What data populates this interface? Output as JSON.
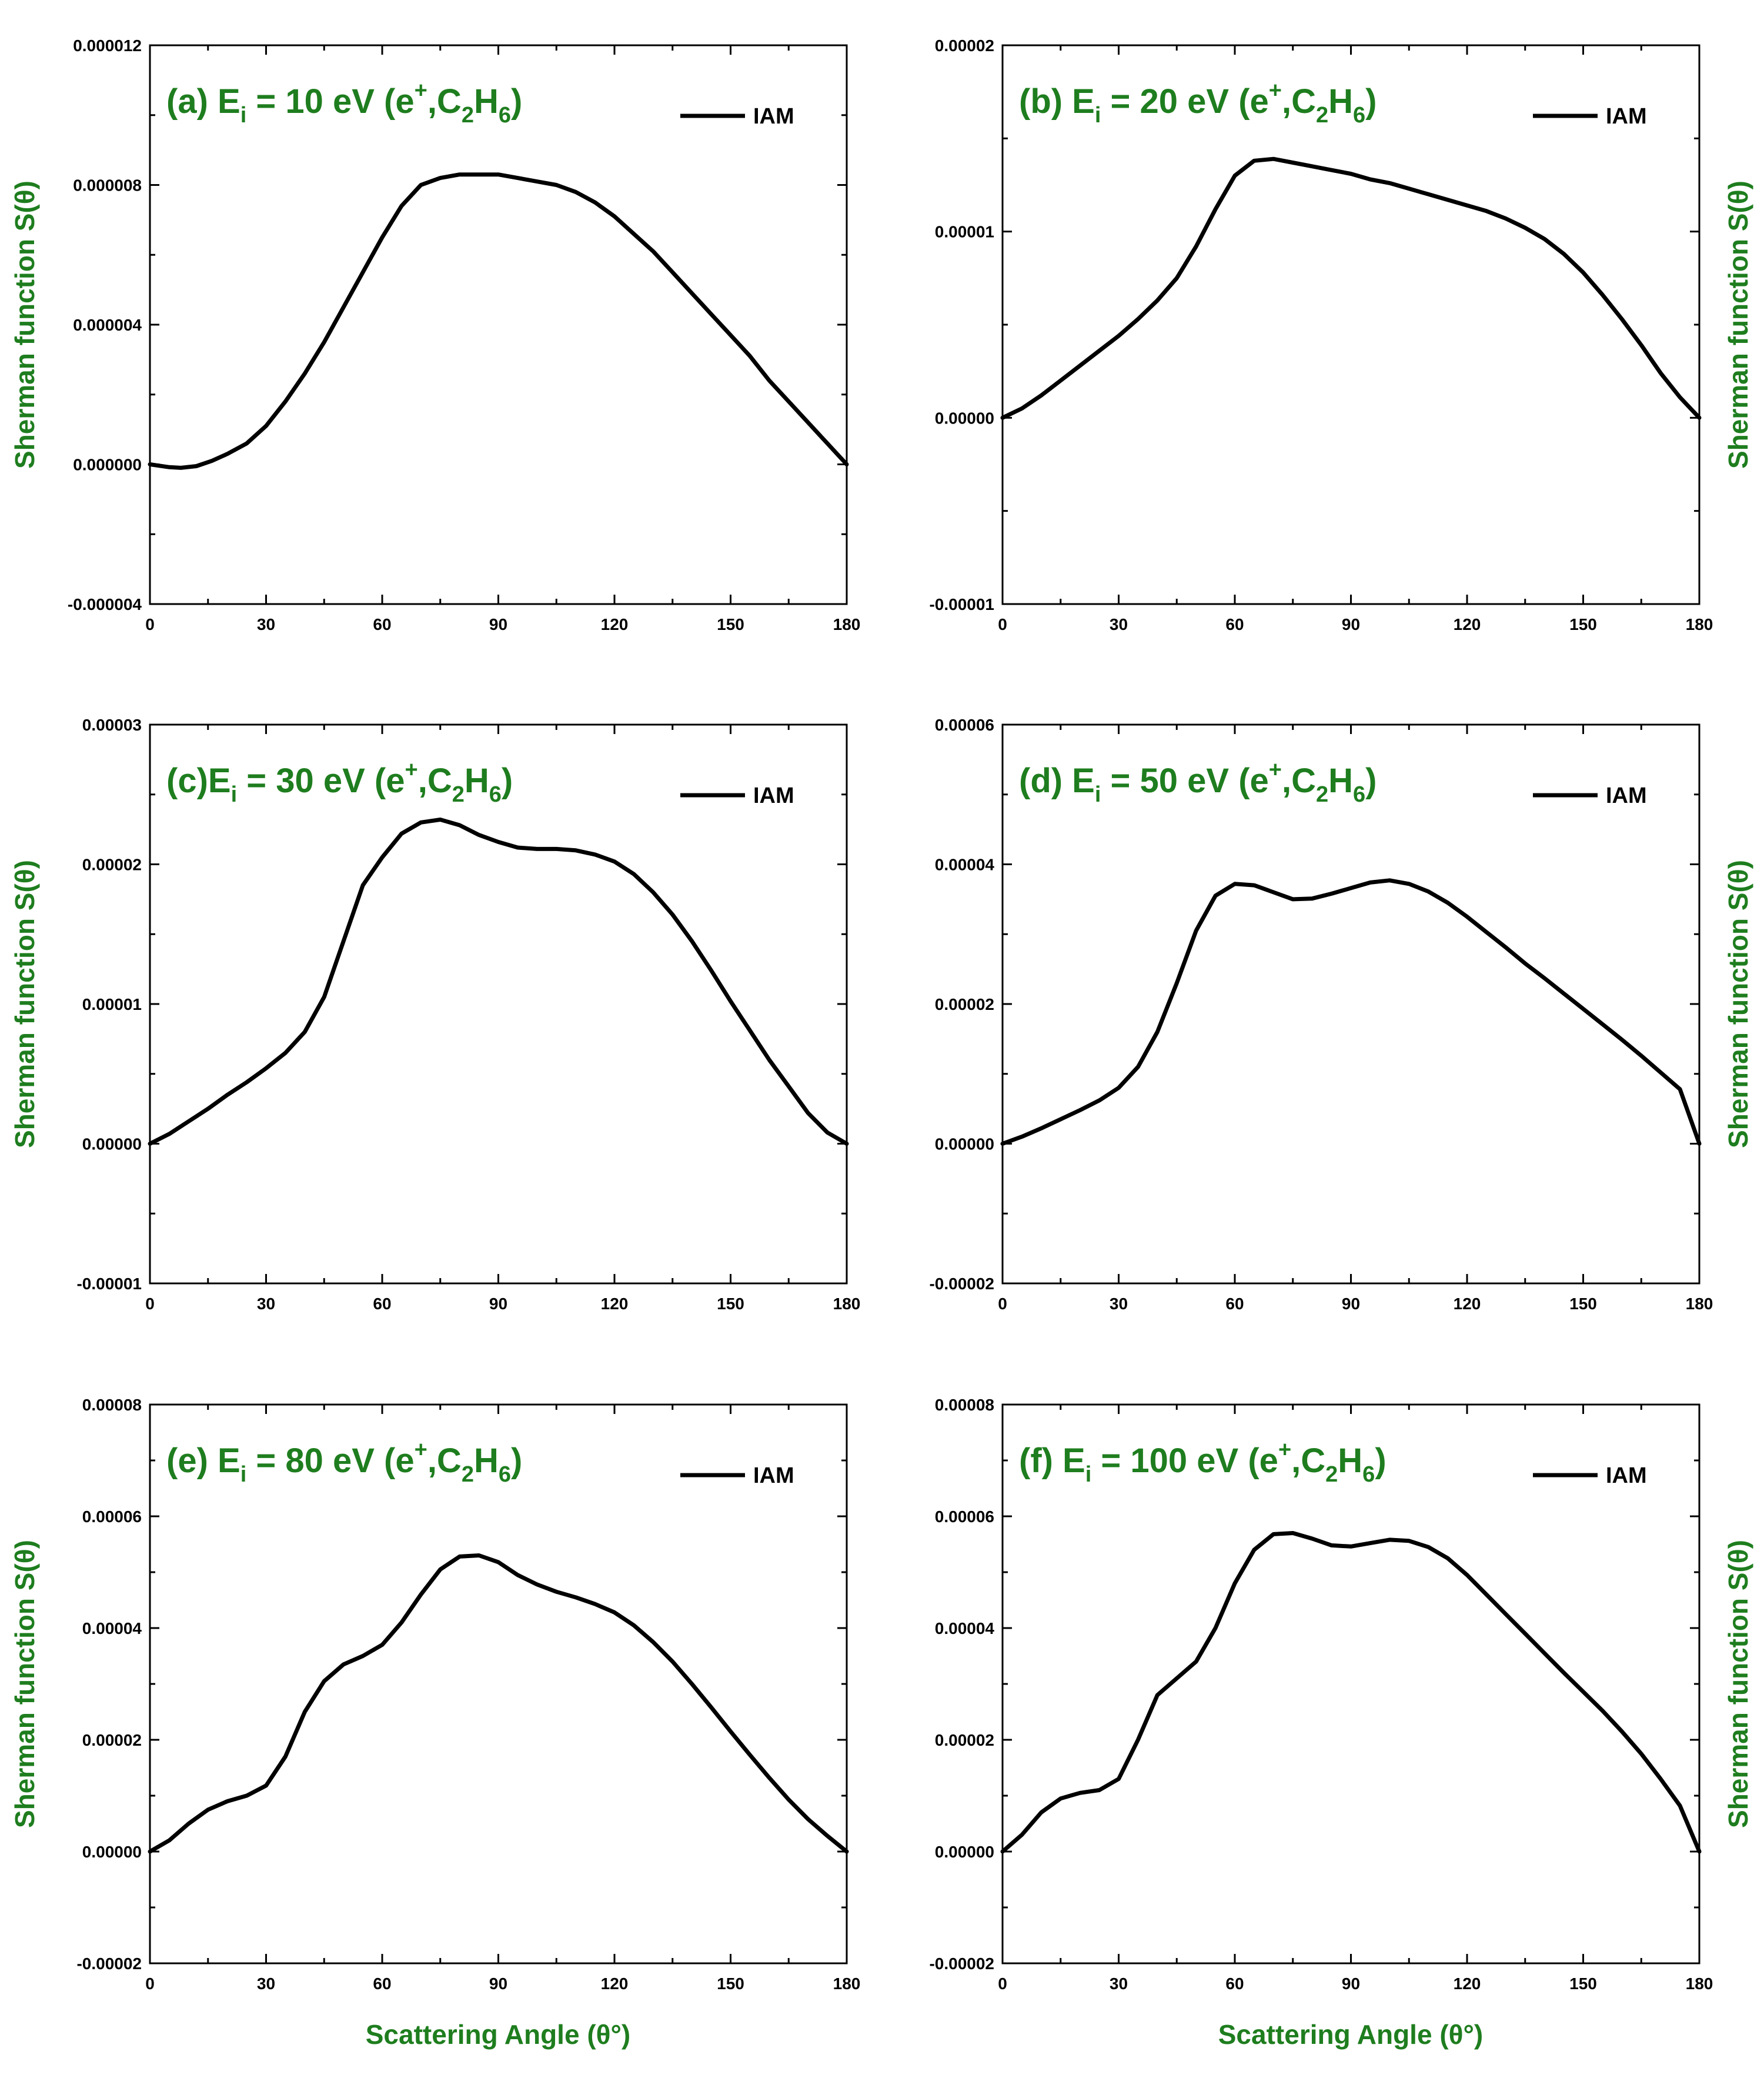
{
  "colors": {
    "label": "#1e7d1e",
    "line": "#000000",
    "frame": "#000000"
  },
  "figure": {
    "xlabel": "Scattering Angle (θ°)"
  },
  "chart_data": [
    {
      "type": "line",
      "title": "(a) E_i = 10 eV (e+,C2H6)",
      "title_parts": {
        "prefix": "(a) E",
        "sub_i": "i",
        "mid": " = 10 eV (e",
        "sup": "+",
        "mid2": ",C",
        "sub_2": "2",
        "h": "H",
        "sub_6": "6",
        "close": ")"
      },
      "xlabel": "Scattering Angle (θ°)",
      "ylabel": "Sherman function S(θ)",
      "ylabel_side": "left",
      "xlim": [
        0,
        180
      ],
      "ylim": [
        -4e-06,
        1.2e-05
      ],
      "xticks": [
        "0",
        "30",
        "60",
        "90",
        "120",
        "150",
        "180"
      ],
      "yticks": [
        "-0.000004",
        "0.000000",
        "0.000004",
        "0.000008",
        "0.000012"
      ],
      "legend": [
        "IAM"
      ],
      "series": [
        {
          "name": "IAM",
          "x": [
            0,
            5,
            8,
            12,
            16,
            20,
            25,
            30,
            35,
            40,
            45,
            50,
            55,
            60,
            65,
            70,
            75,
            80,
            85,
            90,
            95,
            100,
            105,
            110,
            115,
            120,
            125,
            130,
            135,
            140,
            145,
            150,
            155,
            160,
            165,
            170,
            175,
            180
          ],
          "y": [
            0.0,
            -8e-08,
            -1e-07,
            -5e-08,
            1e-07,
            3e-07,
            6e-07,
            1.1e-06,
            1.8e-06,
            2.6e-06,
            3.5e-06,
            4.5e-06,
            5.5e-06,
            6.5e-06,
            7.4e-06,
            8e-06,
            8.2e-06,
            8.3e-06,
            8.3e-06,
            8.3e-06,
            8.2e-06,
            8.1e-06,
            8e-06,
            7.8e-06,
            7.5e-06,
            7.1e-06,
            6.6e-06,
            6.1e-06,
            5.5e-06,
            4.9e-06,
            4.3e-06,
            3.7e-06,
            3.1e-06,
            2.4e-06,
            1.8e-06,
            1.2e-06,
            6e-07,
            0.0
          ]
        }
      ]
    },
    {
      "type": "line",
      "title": "(b) E_i = 20 eV (e+,C2H6)",
      "title_parts": {
        "prefix": "(b) E",
        "sub_i": "i",
        "mid": " = 20 eV (e",
        "sup": "+",
        "mid2": ",C",
        "sub_2": "2",
        "h": "H",
        "sub_6": "6",
        "close": ")"
      },
      "xlabel": "Scattering Angle (θ°)",
      "ylabel": "Sherman function S(θ)",
      "ylabel_side": "right",
      "xlim": [
        0,
        180
      ],
      "ylim": [
        -1e-05,
        2e-05
      ],
      "xticks": [
        "0",
        "30",
        "60",
        "90",
        "120",
        "150",
        "180"
      ],
      "yticks": [
        "-0.00001",
        "0.00000",
        "0.00001",
        "0.00002"
      ],
      "legend": [
        "IAM"
      ],
      "series": [
        {
          "name": "IAM",
          "x": [
            0,
            5,
            10,
            15,
            20,
            25,
            30,
            35,
            40,
            45,
            50,
            55,
            60,
            65,
            70,
            75,
            80,
            85,
            90,
            95,
            100,
            105,
            110,
            115,
            120,
            125,
            130,
            135,
            140,
            145,
            150,
            155,
            160,
            165,
            170,
            175,
            180
          ],
          "y": [
            0.0,
            5e-07,
            1.2e-06,
            2e-06,
            2.8e-06,
            3.6e-06,
            4.4e-06,
            5.3e-06,
            6.3e-06,
            7.5e-06,
            9.2e-06,
            1.12e-05,
            1.3e-05,
            1.38e-05,
            1.39e-05,
            1.37e-05,
            1.35e-05,
            1.33e-05,
            1.31e-05,
            1.28e-05,
            1.26e-05,
            1.23e-05,
            1.2e-05,
            1.17e-05,
            1.14e-05,
            1.11e-05,
            1.07e-05,
            1.02e-05,
            9.6e-06,
            8.8e-06,
            7.8e-06,
            6.6e-06,
            5.3e-06,
            3.9e-06,
            2.4e-06,
            1.1e-06,
            0.0
          ]
        }
      ]
    },
    {
      "type": "line",
      "title": "(c)E_i = 30 eV (e+,C2H6)",
      "title_parts": {
        "prefix": "(c)E",
        "sub_i": "i",
        "mid": " = 30 eV (e",
        "sup": "+",
        "mid2": ",C",
        "sub_2": "2",
        "h": "H",
        "sub_6": "6",
        "close": ")"
      },
      "xlabel": "Scattering Angle (θ°)",
      "ylabel": "Sherman function S(θ)",
      "ylabel_side": "left",
      "xlim": [
        0,
        180
      ],
      "ylim": [
        -1e-05,
        3e-05
      ],
      "xticks": [
        "0",
        "30",
        "60",
        "90",
        "120",
        "150",
        "180"
      ],
      "yticks": [
        "-0.00001",
        "0.00000",
        "0.00001",
        "0.00002",
        "0.00003"
      ],
      "legend": [
        "IAM"
      ],
      "series": [
        {
          "name": "IAM",
          "x": [
            0,
            5,
            10,
            15,
            20,
            25,
            30,
            35,
            40,
            45,
            50,
            55,
            60,
            65,
            70,
            75,
            80,
            85,
            90,
            95,
            100,
            105,
            110,
            115,
            120,
            125,
            130,
            135,
            140,
            145,
            150,
            155,
            160,
            165,
            170,
            175,
            180
          ],
          "y": [
            0.0,
            7e-07,
            1.6e-06,
            2.5e-06,
            3.5e-06,
            4.4e-06,
            5.4e-06,
            6.5e-06,
            8e-06,
            1.05e-05,
            1.45e-05,
            1.85e-05,
            2.05e-05,
            2.22e-05,
            2.3e-05,
            2.32e-05,
            2.28e-05,
            2.21e-05,
            2.16e-05,
            2.12e-05,
            2.11e-05,
            2.11e-05,
            2.1e-05,
            2.07e-05,
            2.02e-05,
            1.93e-05,
            1.8e-05,
            1.64e-05,
            1.45e-05,
            1.24e-05,
            1.02e-05,
            8.1e-06,
            6e-06,
            4.1e-06,
            2.2e-06,
            8e-07,
            0.0
          ]
        }
      ]
    },
    {
      "type": "line",
      "title": "(d) E_i = 50 eV (e+,C2H6)",
      "title_parts": {
        "prefix": "(d) E",
        "sub_i": "i",
        "mid": " = 50 eV (e",
        "sup": "+",
        "mid2": ",C",
        "sub_2": "2",
        "h": "H",
        "sub_6": "6",
        "close": ")"
      },
      "xlabel": "Scattering Angle (θ°)",
      "ylabel": "Sherman function S(θ)",
      "ylabel_side": "right",
      "xlim": [
        0,
        180
      ],
      "ylim": [
        -2e-05,
        6e-05
      ],
      "xticks": [
        "0",
        "30",
        "60",
        "90",
        "120",
        "150",
        "180"
      ],
      "yticks": [
        "-0.00002",
        "0.00000",
        "0.00002",
        "0.00004",
        "0.00006"
      ],
      "legend": [
        "IAM"
      ],
      "series": [
        {
          "name": "IAM",
          "x": [
            0,
            5,
            10,
            15,
            20,
            25,
            30,
            35,
            40,
            45,
            50,
            55,
            60,
            65,
            70,
            75,
            80,
            85,
            90,
            95,
            100,
            105,
            110,
            115,
            120,
            125,
            130,
            135,
            140,
            145,
            150,
            155,
            160,
            165,
            170,
            175,
            180
          ],
          "y": [
            0.0,
            1e-06,
            2.2e-06,
            3.5e-06,
            4.8e-06,
            6.2e-06,
            8e-06,
            1.1e-05,
            1.6e-05,
            2.3e-05,
            3.05e-05,
            3.55e-05,
            3.72e-05,
            3.7e-05,
            3.6e-05,
            3.5e-05,
            3.51e-05,
            3.58e-05,
            3.66e-05,
            3.74e-05,
            3.77e-05,
            3.72e-05,
            3.61e-05,
            3.45e-05,
            3.25e-05,
            3.03e-05,
            2.81e-05,
            2.58e-05,
            2.37e-05,
            2.15e-05,
            1.93e-05,
            1.71e-05,
            1.49e-05,
            1.26e-05,
            1.02e-05,
            7.8e-06,
            0.0
          ]
        }
      ]
    },
    {
      "type": "line",
      "title": "(e) E_i = 80 eV (e+,C2H6)",
      "title_parts": {
        "prefix": "(e) E",
        "sub_i": "i",
        "mid": " = 80 eV (e",
        "sup": "+",
        "mid2": ",C",
        "sub_2": "2",
        "h": "H",
        "sub_6": "6",
        "close": ")"
      },
      "xlabel": "Scattering Angle (θ°)",
      "ylabel": "Sherman function S(θ)",
      "ylabel_side": "left",
      "xlim": [
        0,
        180
      ],
      "ylim": [
        -2e-05,
        8e-05
      ],
      "xticks": [
        "0",
        "30",
        "60",
        "90",
        "120",
        "150",
        "180"
      ],
      "yticks": [
        "-0.00002",
        "0.00000",
        "0.00002",
        "0.00004",
        "0.00006",
        "0.00008"
      ],
      "legend": [
        "IAM"
      ],
      "series": [
        {
          "name": "IAM",
          "x": [
            0,
            5,
            10,
            15,
            20,
            25,
            30,
            35,
            40,
            45,
            50,
            55,
            60,
            65,
            70,
            75,
            80,
            85,
            90,
            95,
            100,
            105,
            110,
            115,
            120,
            125,
            130,
            135,
            140,
            145,
            150,
            155,
            160,
            165,
            170,
            175,
            180
          ],
          "y": [
            0.0,
            2e-06,
            5e-06,
            7.5e-06,
            9e-06,
            1e-05,
            1.18e-05,
            1.7e-05,
            2.5e-05,
            3.05e-05,
            3.35e-05,
            3.5e-05,
            3.7e-05,
            4.1e-05,
            4.6e-05,
            5.05e-05,
            5.28e-05,
            5.3e-05,
            5.18e-05,
            4.95e-05,
            4.78e-05,
            4.65e-05,
            4.55e-05,
            4.43e-05,
            4.28e-05,
            4.05e-05,
            3.75e-05,
            3.4e-05,
            3e-05,
            2.58e-05,
            2.15e-05,
            1.73e-05,
            1.32e-05,
            9.3e-06,
            5.8e-06,
            2.8e-06,
            0.0
          ]
        }
      ]
    },
    {
      "type": "line",
      "title": "(f) E_i = 100 eV (e+,C2H6)",
      "title_parts": {
        "prefix": "(f) E",
        "sub_i": "i",
        "mid": " = 100 eV (e",
        "sup": "+",
        "mid2": ",C",
        "sub_2": "2",
        "h": "H",
        "sub_6": "6",
        "close": ")"
      },
      "xlabel": "Scattering Angle (θ°)",
      "ylabel": "Sherman function S(θ)",
      "ylabel_side": "right",
      "xlim": [
        0,
        180
      ],
      "ylim": [
        -2e-05,
        8e-05
      ],
      "xticks": [
        "0",
        "30",
        "60",
        "90",
        "120",
        "150",
        "180"
      ],
      "yticks": [
        "-0.00002",
        "0.00000",
        "0.00002",
        "0.00004",
        "0.00006",
        "0.00008"
      ],
      "legend": [
        "IAM"
      ],
      "series": [
        {
          "name": "IAM",
          "x": [
            0,
            5,
            10,
            15,
            20,
            25,
            30,
            35,
            40,
            45,
            50,
            55,
            60,
            65,
            70,
            75,
            80,
            85,
            90,
            95,
            100,
            105,
            110,
            115,
            120,
            125,
            130,
            135,
            140,
            145,
            150,
            155,
            160,
            165,
            170,
            175,
            180
          ],
          "y": [
            0.0,
            3e-06,
            7e-06,
            9.5e-06,
            1.05e-05,
            1.1e-05,
            1.3e-05,
            2e-05,
            2.8e-05,
            3.1e-05,
            3.4e-05,
            4e-05,
            4.8e-05,
            5.4e-05,
            5.68e-05,
            5.7e-05,
            5.6e-05,
            5.48e-05,
            5.46e-05,
            5.52e-05,
            5.58e-05,
            5.56e-05,
            5.45e-05,
            5.25e-05,
            4.95e-05,
            4.6e-05,
            4.25e-05,
            3.9e-05,
            3.55e-05,
            3.2e-05,
            2.86e-05,
            2.52e-05,
            2.15e-05,
            1.75e-05,
            1.3e-05,
            8.2e-06,
            0.0
          ]
        }
      ]
    }
  ]
}
